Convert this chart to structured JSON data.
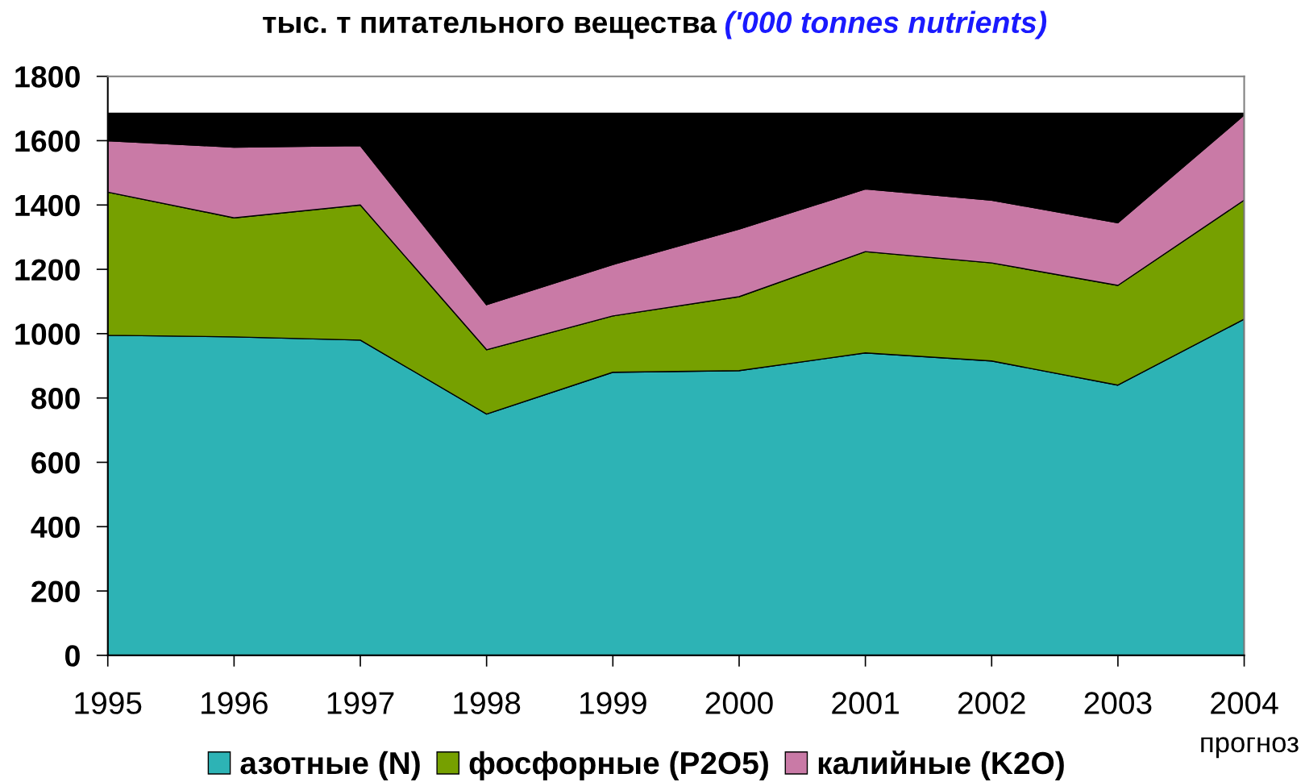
{
  "chart_data": {
    "type": "area",
    "stacked": true,
    "title": "тыс. т питательного вещества",
    "subtitle": "('000 tonnes nutrients)",
    "categories": [
      "1995",
      "1996",
      "1997",
      "1998",
      "1999",
      "2000",
      "2001",
      "2002",
      "2003",
      "2004"
    ],
    "series": [
      {
        "name": "азотные (N)",
        "color": "#2db3b5",
        "values": [
          995,
          990,
          980,
          750,
          880,
          885,
          940,
          915,
          840,
          1045
        ]
      },
      {
        "name": "фосфорные (P2O5)",
        "color": "#76a000",
        "values": [
          445,
          370,
          420,
          200,
          175,
          230,
          315,
          305,
          310,
          370
        ]
      },
      {
        "name": "калийные (K2O)",
        "color": "#c97aa6",
        "values": [
          160,
          220,
          185,
          140,
          160,
          210,
          195,
          195,
          195,
          265
        ]
      },
      {
        "color": "#000000",
        "values": [
          85,
          105,
          100,
          595,
          470,
          360,
          235,
          270,
          340,
          5
        ]
      }
    ],
    "ylim": [
      0,
      1800
    ],
    "yticks": [
      0,
      200,
      400,
      600,
      800,
      1000,
      1200,
      1400,
      1600,
      1800
    ],
    "annotations": [
      "прогноз"
    ],
    "legend": "bottom"
  }
}
